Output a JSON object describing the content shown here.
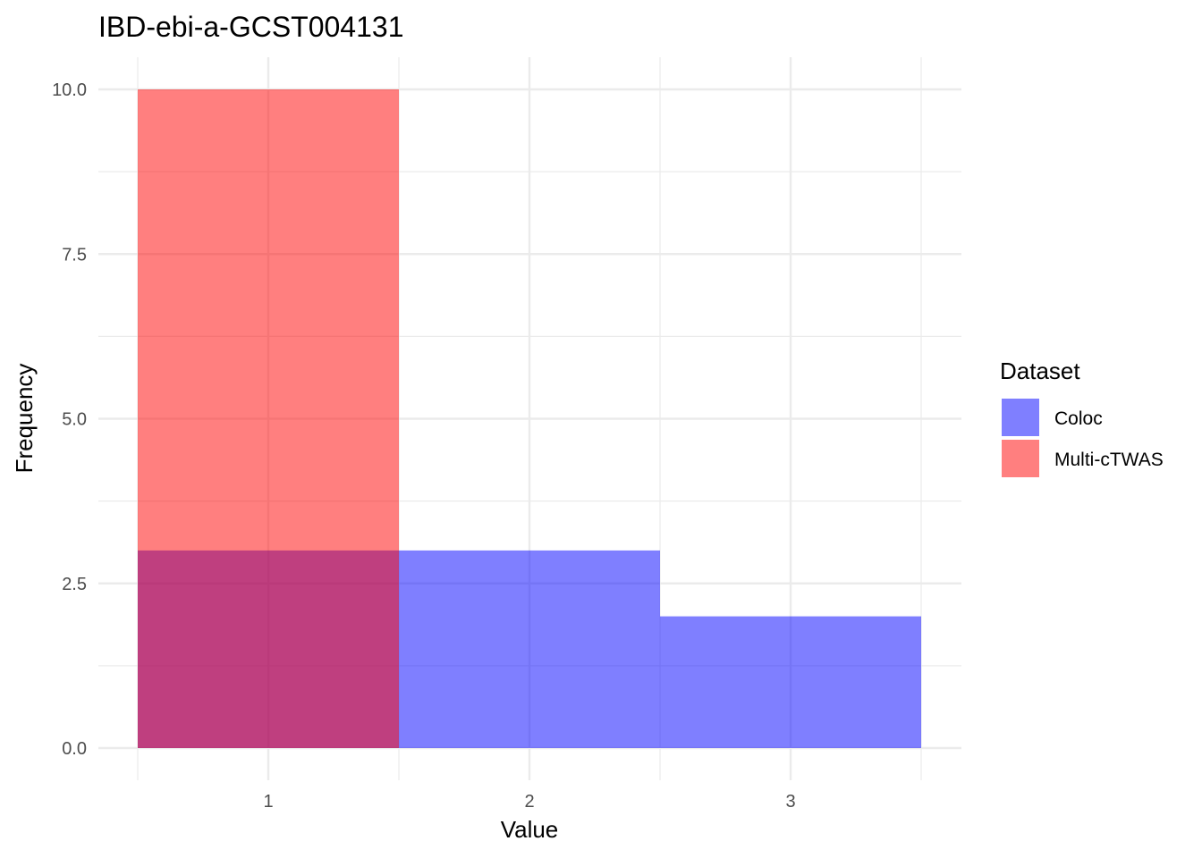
{
  "chart_data": {
    "type": "bar",
    "title": "IBD-ebi-a-GCST004131",
    "xlabel": "Value",
    "ylabel": "Frequency",
    "x_ticks": [
      "1",
      "2",
      "3"
    ],
    "y_ticks": [
      "0.0",
      "2.5",
      "5.0",
      "7.5",
      "10.0"
    ],
    "xlim": [
      0.5,
      3.5
    ],
    "ylim": [
      0,
      10
    ],
    "grid": true,
    "legend": {
      "title": "Dataset",
      "placement": "right"
    },
    "series": [
      {
        "name": "Coloc",
        "color": "#0000FF",
        "opacity": 0.5,
        "bins": [
          {
            "from": 0.5,
            "to": 1.5,
            "value": 3
          },
          {
            "from": 1.5,
            "to": 2.5,
            "value": 3
          },
          {
            "from": 2.5,
            "to": 3.5,
            "value": 2
          }
        ]
      },
      {
        "name": "Multi-cTWAS",
        "color": "#FF0000",
        "opacity": 0.5,
        "bins": [
          {
            "from": 0.5,
            "to": 1.5,
            "value": 10
          }
        ]
      }
    ]
  }
}
